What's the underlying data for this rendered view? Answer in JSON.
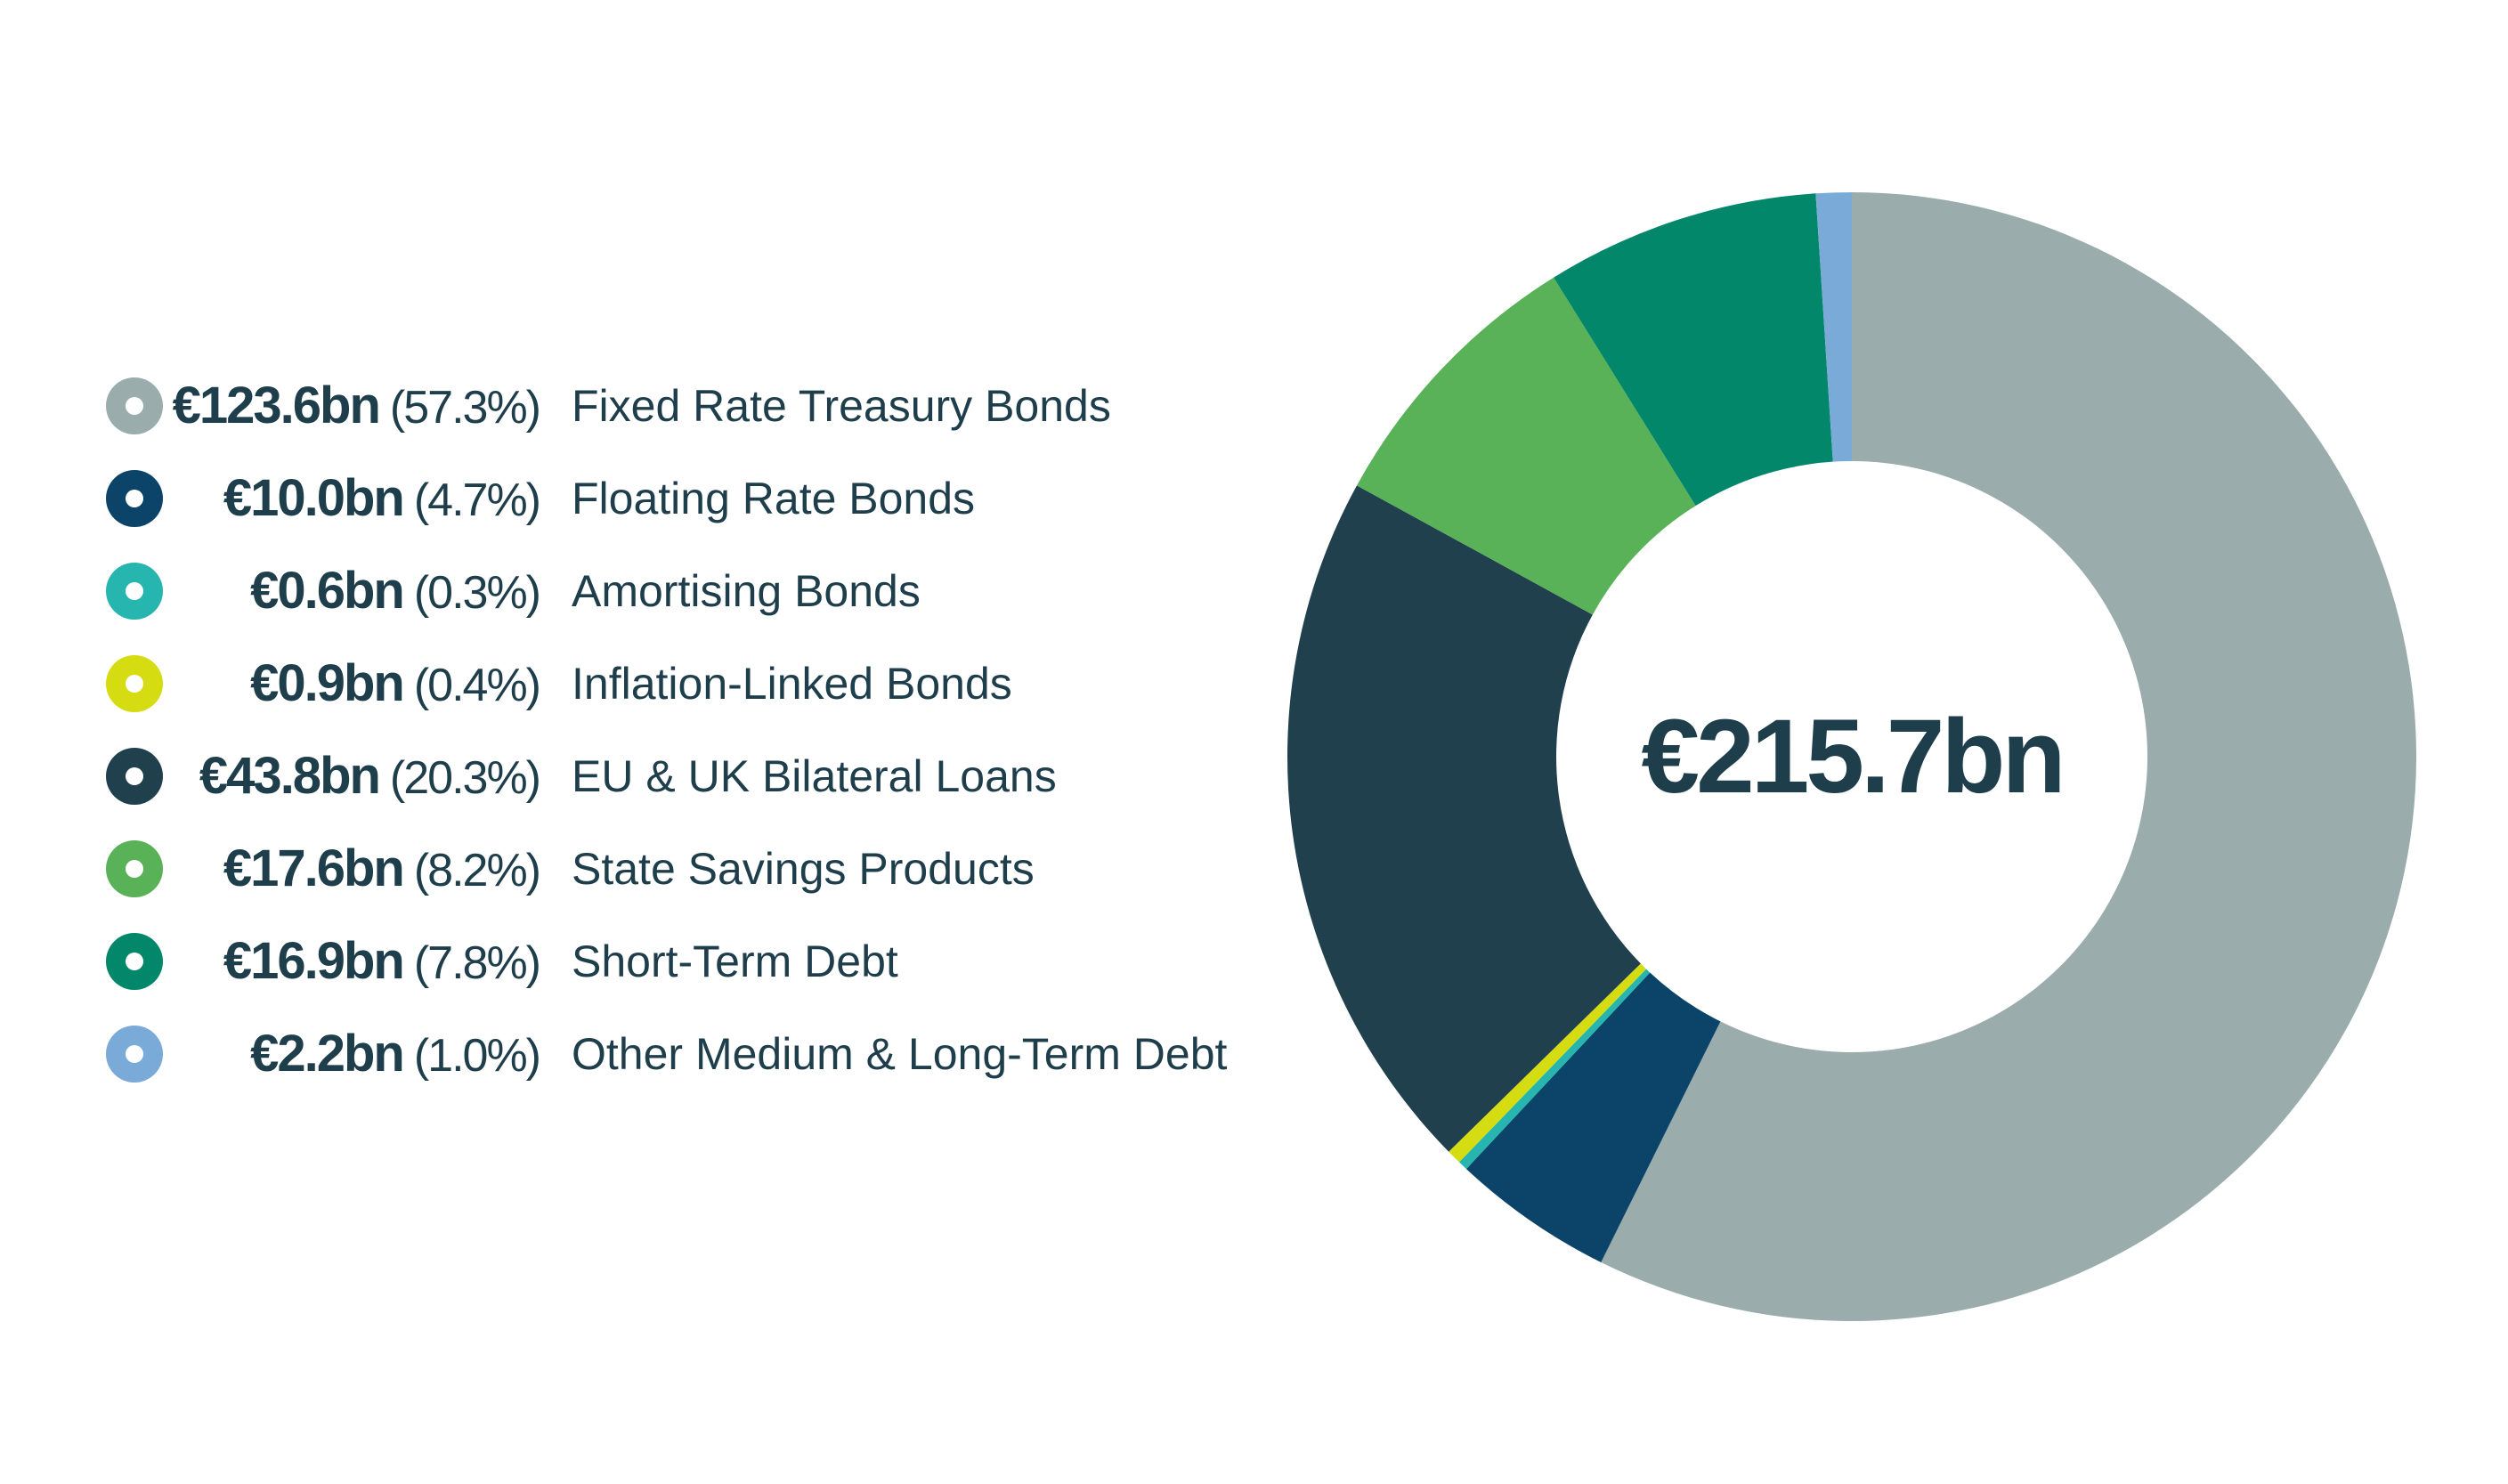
{
  "chart_data": {
    "type": "pie",
    "donut": true,
    "total_label": "€215.7bn",
    "slices": [
      {
        "amount_label": "€123.6bn",
        "pct_label": "(57.3%)",
        "name": "Fixed Rate Treasury Bonds",
        "value": 123.6,
        "percent": 57.3,
        "color": "#9aacac"
      },
      {
        "amount_label": "€10.0bn",
        "pct_label": "(4.7%)",
        "name": "Floating Rate Bonds",
        "value": 10.0,
        "percent": 4.7,
        "color": "#0b4468"
      },
      {
        "amount_label": "€0.6bn",
        "pct_label": "(0.3%)",
        "name": "Amortising Bonds",
        "value": 0.6,
        "percent": 0.3,
        "color": "#27b5b0"
      },
      {
        "amount_label": "€0.9bn",
        "pct_label": "(0.4%)",
        "name": "Inflation-Linked Bonds",
        "value": 0.9,
        "percent": 0.4,
        "color": "#d6dc12"
      },
      {
        "amount_label": "€43.8bn",
        "pct_label": "(20.3%)",
        "name": "EU & UK Bilateral Loans",
        "value": 43.8,
        "percent": 20.3,
        "color": "#20404d"
      },
      {
        "amount_label": "€17.6bn",
        "pct_label": "(8.2%)",
        "name": "State Savings Products",
        "value": 17.6,
        "percent": 8.2,
        "color": "#59b258"
      },
      {
        "amount_label": "€16.9bn",
        "pct_label": "(7.8%)",
        "name": "Short-Term Debt",
        "value": 16.9,
        "percent": 7.8,
        "color": "#02876a"
      },
      {
        "amount_label": "€2.2bn",
        "pct_label": "(1.0%)",
        "name": "Other Medium & Long-Term Debt",
        "value": 2.2,
        "percent": 1.0,
        "color": "#79aad8"
      }
    ],
    "start_angle": "12 o'clock",
    "direction": "clockwise",
    "legend_position": "left"
  }
}
